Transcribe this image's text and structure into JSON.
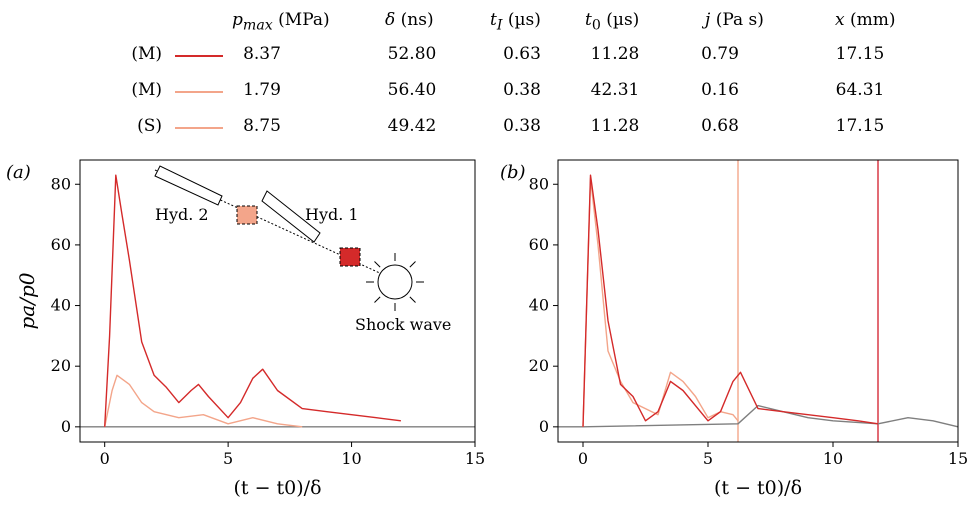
{
  "table": {
    "headers": [
      {
        "sym": "p",
        "sub": "max",
        "unit": "(MPa)"
      },
      {
        "sym": "δ",
        "sub": "",
        "unit": "(ns)"
      },
      {
        "sym": "t",
        "sub": "I",
        "unit": "(µs)"
      },
      {
        "sym": "t",
        "sub": "0",
        "unit": "(µs)"
      },
      {
        "sym": "j",
        "sub": "",
        "unit": "(Pa s)"
      },
      {
        "sym": "x",
        "sub": "",
        "unit": "(mm)"
      }
    ],
    "rows": [
      {
        "tag": "(M)",
        "color": "#d42a2a",
        "values": [
          "8.37",
          "52.80",
          "0.63",
          "11.28",
          "0.79",
          "17.15"
        ]
      },
      {
        "tag": "(M)",
        "color": "#f3a58a",
        "values": [
          "1.79",
          "56.40",
          "0.38",
          "42.31",
          "0.16",
          "64.31"
        ]
      },
      {
        "tag": "(S)",
        "color": "#f3a58a",
        "values": [
          "8.75",
          "49.42",
          "0.38",
          "11.28",
          "0.68",
          "17.15"
        ]
      }
    ]
  },
  "colors": {
    "dark_red": "#d42a2a",
    "light_salmon": "#f3a58a",
    "gray": "#7f7f7f",
    "vline_light": "#f7c1ad",
    "vline_dark": "#e26b74"
  },
  "chart_data": [
    {
      "type": "line",
      "panel_label": "(a)",
      "xlabel": "(t − t0)/δ",
      "ylabel": "pa/p0",
      "xlim": [
        -1,
        15
      ],
      "ylim": [
        -5,
        88
      ],
      "xticks": [
        0,
        5,
        10,
        15
      ],
      "yticks": [
        0,
        20,
        40,
        60,
        80
      ],
      "series": [
        {
          "color": "#7f7f7f",
          "x": [
            -1,
            0,
            12,
            15
          ],
          "y": [
            0,
            0,
            0,
            0
          ]
        },
        {
          "color": "#f3a58a",
          "x": [
            0,
            0.3,
            0.5,
            1,
            1.5,
            2,
            3,
            4,
            5,
            6,
            7,
            8
          ],
          "y": [
            0,
            12,
            17,
            14,
            8,
            5,
            3,
            4,
            1,
            3,
            1,
            0
          ]
        },
        {
          "color": "#d42a2a",
          "x": [
            0,
            0.2,
            0.45,
            0.7,
            1,
            1.5,
            2,
            2.5,
            3,
            3.5,
            3.8,
            4.2,
            5,
            5.5,
            6,
            6.4,
            7,
            8,
            9,
            10,
            11,
            12
          ],
          "y": [
            0,
            30,
            83,
            70,
            55,
            28,
            17,
            13,
            8,
            12,
            14,
            10,
            3,
            8,
            16,
            19,
            12,
            6,
            5,
            4,
            3,
            2
          ]
        }
      ],
      "annotations": [
        "Hyd. 2",
        "Hyd. 1",
        "Shock wave"
      ]
    },
    {
      "type": "line",
      "panel_label": "(b)",
      "xlabel": "(t − t0)/δ",
      "ylabel": "",
      "xlim": [
        -1,
        15
      ],
      "ylim": [
        -5,
        88
      ],
      "xticks": [
        0,
        5,
        10,
        15
      ],
      "yticks": [
        0,
        20,
        40,
        60,
        80
      ],
      "vlines": [
        {
          "x": 6.2,
          "color": "#f7c1ad"
        },
        {
          "x": 11.8,
          "color": "#e26b74"
        }
      ],
      "series": [
        {
          "color": "#7f7f7f",
          "x": [
            -1,
            0,
            6.2,
            7,
            8,
            9,
            10,
            11.8,
            13,
            14,
            15
          ],
          "y": [
            0,
            0,
            1,
            7,
            5,
            3,
            2,
            1,
            3,
            2,
            0
          ]
        },
        {
          "color": "#f3a58a",
          "x": [
            0,
            0.3,
            0.6,
            1,
            1.5,
            2,
            3,
            3.5,
            4,
            4.5,
            5,
            5.5,
            6,
            6.2
          ],
          "y": [
            0,
            82,
            60,
            25,
            15,
            8,
            4,
            18,
            15,
            10,
            3,
            5,
            4,
            2
          ]
        },
        {
          "color": "#d42a2a",
          "x": [
            0,
            0.3,
            0.6,
            1,
            1.5,
            2,
            2.5,
            3,
            3.5,
            4,
            5,
            5.5,
            6,
            6.3,
            7,
            8,
            9,
            10,
            11,
            11.8
          ],
          "y": [
            0,
            83,
            65,
            35,
            14,
            10,
            2,
            5,
            15,
            12,
            2,
            5,
            15,
            18,
            6,
            5,
            4,
            3,
            2,
            1
          ]
        }
      ]
    }
  ]
}
